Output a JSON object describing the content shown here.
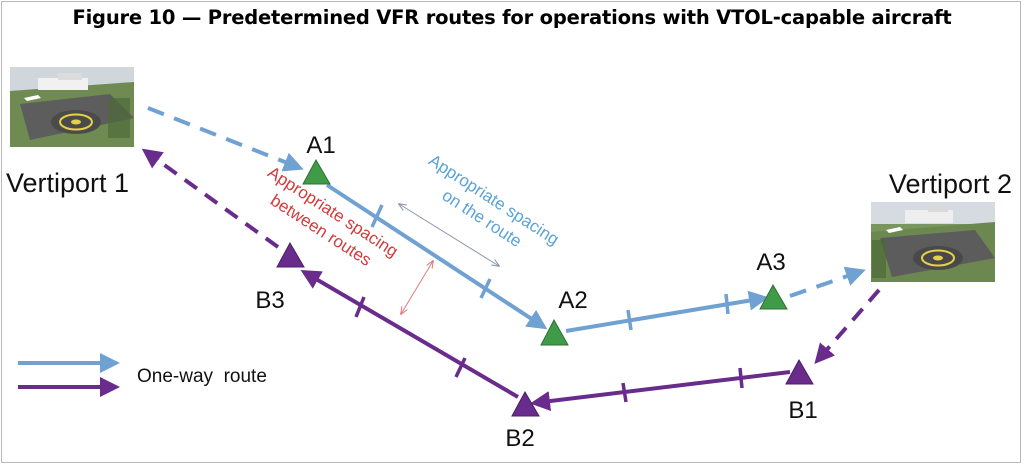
{
  "figure": {
    "title": "Figure 10 — Predetermined VFR routes for operations with VTOL-capable aircraft"
  },
  "vertiports": [
    {
      "id": "v1",
      "label": "Vertiport 1"
    },
    {
      "id": "v2",
      "label": "Vertiport 2"
    }
  ],
  "waypoints": [
    {
      "id": "A1",
      "label": "A1",
      "route": "A"
    },
    {
      "id": "A2",
      "label": "A2",
      "route": "A"
    },
    {
      "id": "A3",
      "label": "A3",
      "route": "A"
    },
    {
      "id": "B1",
      "label": "B1",
      "route": "B"
    },
    {
      "id": "B2",
      "label": "B2",
      "route": "B"
    },
    {
      "id": "B3",
      "label": "B3",
      "route": "B"
    }
  ],
  "annotations": {
    "spacing_on_route_line1": "Appropriate spacing",
    "spacing_on_route_line2": "on the route",
    "spacing_between_line1": "Appropriate spacing",
    "spacing_between_line2": "between routes"
  },
  "legend": {
    "label": "One-way  route"
  },
  "colors": {
    "route_a": "#6fa1d2",
    "route_b": "#6a2c8c",
    "marker_a": "#3f9b47",
    "marker_b": "#6a2c8c",
    "annotation_on_route": "#5aa3d6",
    "annotation_between": "#d23b3b",
    "measure_arrow_on_route": "#9aa6b8",
    "measure_arrow_between": "#e07a7a"
  }
}
